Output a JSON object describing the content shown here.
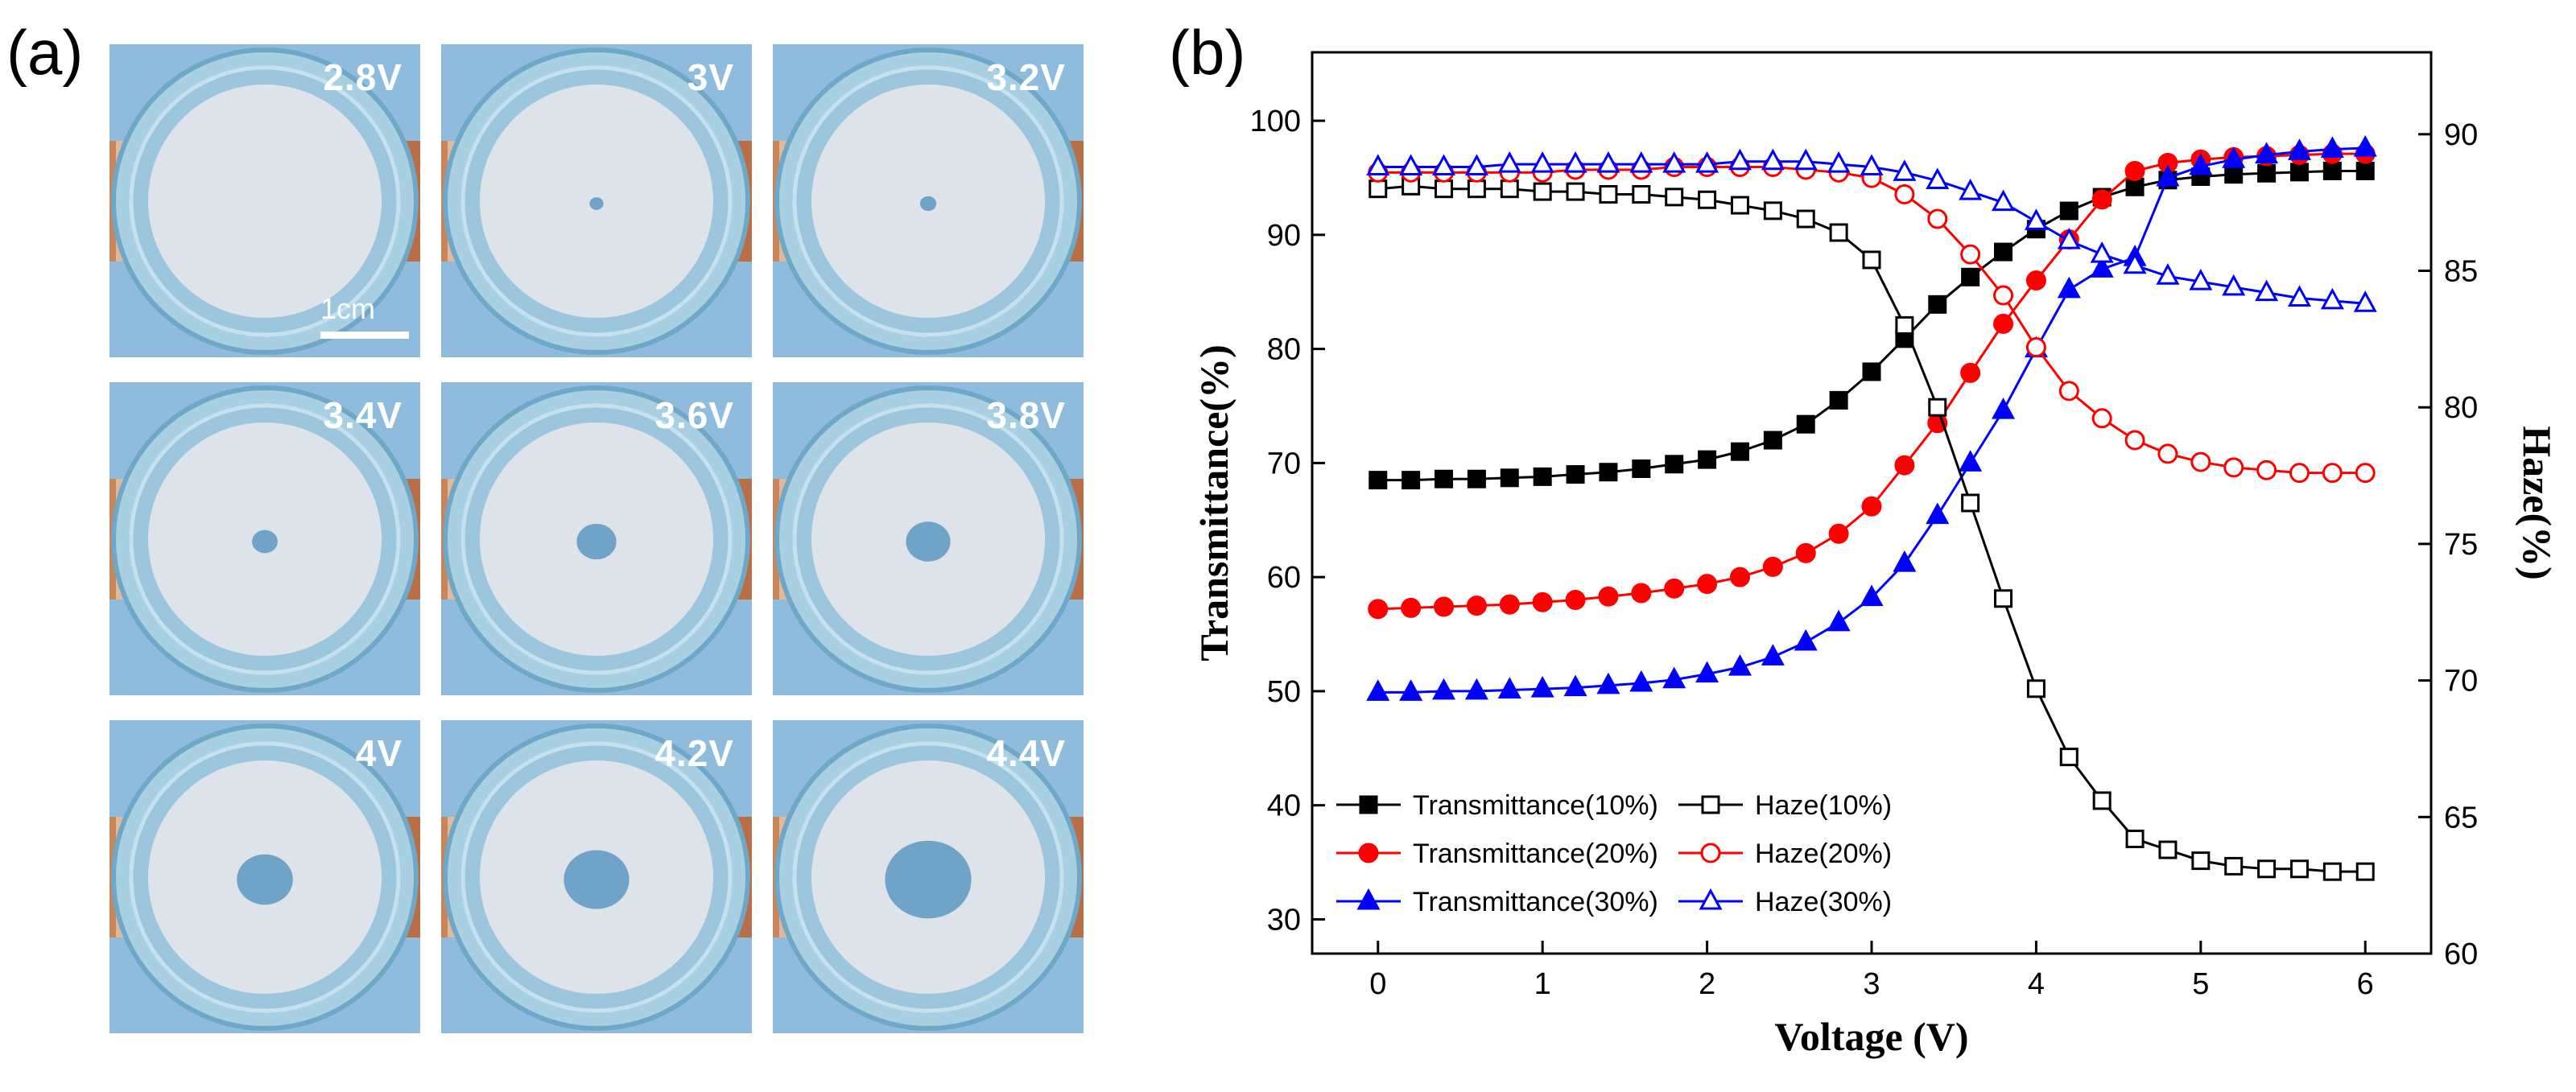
{
  "figure": {
    "panel_a_label": "(a)",
    "panel_b_label": "(b)"
  },
  "photos": {
    "scale_bar_label": "1cm",
    "items": [
      {
        "voltage": "2.8V",
        "spot": 0.0
      },
      {
        "voltage": "3V",
        "spot": 0.06
      },
      {
        "voltage": "3.2V",
        "spot": 0.07
      },
      {
        "voltage": "3.4V",
        "spot": 0.11
      },
      {
        "voltage": "3.6V",
        "spot": 0.17
      },
      {
        "voltage": "3.8V",
        "spot": 0.19
      },
      {
        "voltage": "4V",
        "spot": 0.24
      },
      {
        "voltage": "4.2V",
        "spot": 0.28
      },
      {
        "voltage": "4.4V",
        "spot": 0.37
      }
    ]
  },
  "chart_data": {
    "type": "line",
    "xlabel": "Voltage (V)",
    "ylabel_left": "Transmittance(%)",
    "ylabel_right": "Haze(%)",
    "xlim": [
      -0.4,
      6.4
    ],
    "ylim_left": [
      27,
      106
    ],
    "ylim_right": [
      60,
      93
    ],
    "xticks": [
      0,
      1,
      2,
      3,
      4,
      5,
      6
    ],
    "yticks_left": [
      30,
      40,
      50,
      60,
      70,
      80,
      90,
      100
    ],
    "yticks_right": [
      60,
      65,
      70,
      75,
      80,
      85,
      90
    ],
    "x": [
      0,
      0.2,
      0.4,
      0.6,
      0.8,
      1.0,
      1.2,
      1.4,
      1.6,
      1.8,
      2.0,
      2.2,
      2.4,
      2.6,
      2.8,
      3.0,
      3.2,
      3.4,
      3.6,
      3.8,
      4.0,
      4.2,
      4.4,
      4.6,
      4.8,
      5.0,
      5.2,
      5.4,
      5.6,
      5.8,
      6.0
    ],
    "series": [
      {
        "name": "Transmittance(10%)",
        "axis": "left",
        "color": "#000000",
        "marker": "square",
        "filled": true,
        "values": [
          68.5,
          68.5,
          68.6,
          68.6,
          68.7,
          68.8,
          69.0,
          69.2,
          69.5,
          69.9,
          70.3,
          71.0,
          72.0,
          73.4,
          75.5,
          78.0,
          80.9,
          83.9,
          86.3,
          88.5,
          90.5,
          92.1,
          93.3,
          94.2,
          94.8,
          95.1,
          95.3,
          95.4,
          95.5,
          95.6,
          95.6
        ]
      },
      {
        "name": "Transmittance(20%)",
        "axis": "left",
        "color": "#ff0000",
        "marker": "circle",
        "filled": true,
        "values": [
          57.2,
          57.3,
          57.4,
          57.5,
          57.6,
          57.8,
          58.0,
          58.3,
          58.6,
          59.0,
          59.4,
          60.0,
          60.9,
          62.1,
          63.8,
          66.2,
          69.8,
          73.5,
          77.9,
          82.2,
          86.0,
          89.6,
          93.1,
          95.6,
          96.3,
          96.6,
          96.8,
          96.9,
          97.0,
          97.1,
          97.1
        ]
      },
      {
        "name": "Transmittance(30%)",
        "axis": "left",
        "color": "#0000ff",
        "marker": "triangle",
        "filled": true,
        "values": [
          49.9,
          49.9,
          50.0,
          50.0,
          50.1,
          50.2,
          50.3,
          50.5,
          50.7,
          51.0,
          51.5,
          52.1,
          53.0,
          54.3,
          56.0,
          58.2,
          61.2,
          65.4,
          70.0,
          74.6,
          80.0,
          85.2,
          87.0,
          88.0,
          95.0,
          96.0,
          96.6,
          97.0,
          97.3,
          97.5,
          97.6
        ]
      },
      {
        "name": "Haze(10%)",
        "axis": "right",
        "color": "#000000",
        "marker": "square",
        "filled": false,
        "values": [
          88.0,
          88.1,
          88.0,
          88.0,
          88.0,
          87.9,
          87.9,
          87.8,
          87.8,
          87.7,
          87.6,
          87.4,
          87.2,
          86.9,
          86.4,
          85.4,
          83.0,
          80.0,
          76.5,
          73.0,
          69.7,
          67.2,
          65.6,
          64.2,
          63.8,
          63.4,
          63.2,
          63.1,
          63.1,
          63.0,
          63.0
        ]
      },
      {
        "name": "Haze(20%)",
        "axis": "right",
        "color": "#ff0000",
        "marker": "circle",
        "filled": false,
        "values": [
          88.6,
          88.6,
          88.6,
          88.6,
          88.6,
          88.6,
          88.7,
          88.7,
          88.7,
          88.8,
          88.8,
          88.8,
          88.8,
          88.7,
          88.6,
          88.4,
          87.8,
          86.9,
          85.6,
          84.1,
          82.2,
          80.6,
          79.6,
          78.8,
          78.3,
          78.0,
          77.8,
          77.7,
          77.6,
          77.6,
          77.6
        ]
      },
      {
        "name": "Haze(30%)",
        "axis": "right",
        "color": "#0000ff",
        "marker": "triangle",
        "filled": false,
        "values": [
          88.8,
          88.8,
          88.8,
          88.8,
          88.9,
          88.9,
          88.9,
          88.9,
          88.9,
          88.9,
          88.9,
          89.0,
          89.0,
          89.0,
          88.9,
          88.8,
          88.6,
          88.3,
          87.9,
          87.5,
          86.8,
          86.1,
          85.6,
          85.2,
          84.8,
          84.6,
          84.4,
          84.2,
          84.0,
          83.9,
          83.8
        ]
      }
    ],
    "legend": {
      "placement": "bottom-left",
      "columns": [
        [
          "Transmittance(10%)",
          "Transmittance(20%)",
          "Transmittance(30%)"
        ],
        [
          "Haze(10%)",
          "Haze(20%)",
          "Haze(30%)"
        ]
      ]
    }
  }
}
